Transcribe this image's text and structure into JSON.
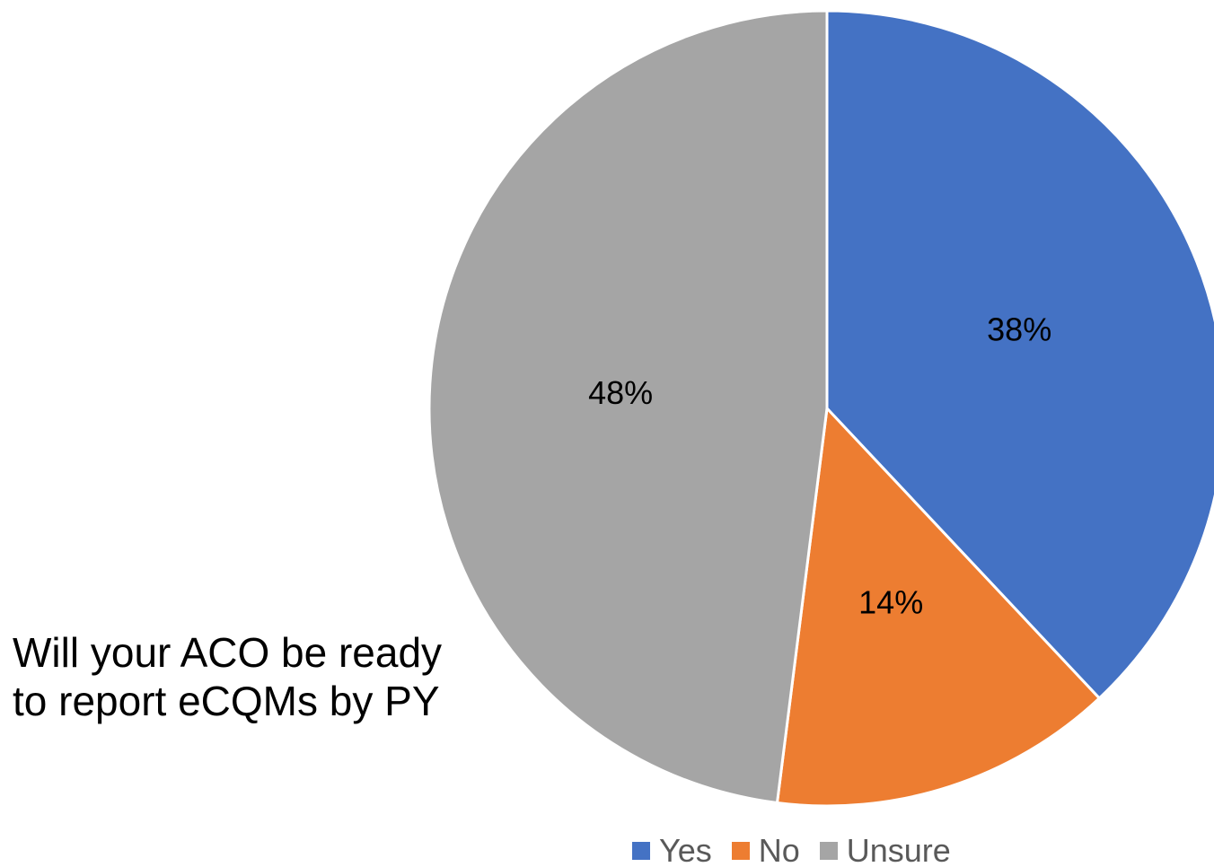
{
  "title_lines": [
    "Will your ACO be ready",
    "to report eCQMs by PY"
  ],
  "chart_data": {
    "type": "pie",
    "title": "Will your ACO be ready to report eCQMs by PY",
    "slices": [
      {
        "name": "Yes",
        "value": 38,
        "label": "38%",
        "color": "#4472C4"
      },
      {
        "name": "No",
        "value": 14,
        "label": "14%",
        "color": "#ED7D31"
      },
      {
        "name": "Unsure",
        "value": 48,
        "label": "48%",
        "color": "#A5A5A5"
      }
    ],
    "start_angle_deg": 0,
    "direction": "clockwise",
    "legend": {
      "position": "bottom",
      "entries": [
        "Yes",
        "No",
        "Unsure"
      ]
    }
  }
}
